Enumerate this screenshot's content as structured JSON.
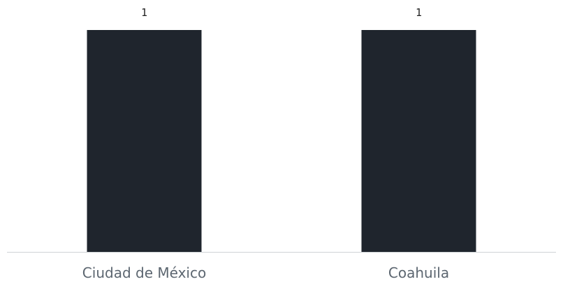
{
  "chart_data": {
    "type": "bar",
    "categories": [
      "Ciudad de México",
      "Coahuila"
    ],
    "values": [
      1,
      1
    ],
    "value_labels": [
      "1",
      "1"
    ],
    "title": "",
    "xlabel": "",
    "ylabel": "",
    "ylim": [
      0,
      1
    ],
    "grid": false,
    "legend": "none",
    "colors": {
      "bar": "#1f252d",
      "axis": "#cfd3d6",
      "category_text": "#5c6670",
      "value_text": "#222222",
      "background": "#ffffff"
    }
  }
}
